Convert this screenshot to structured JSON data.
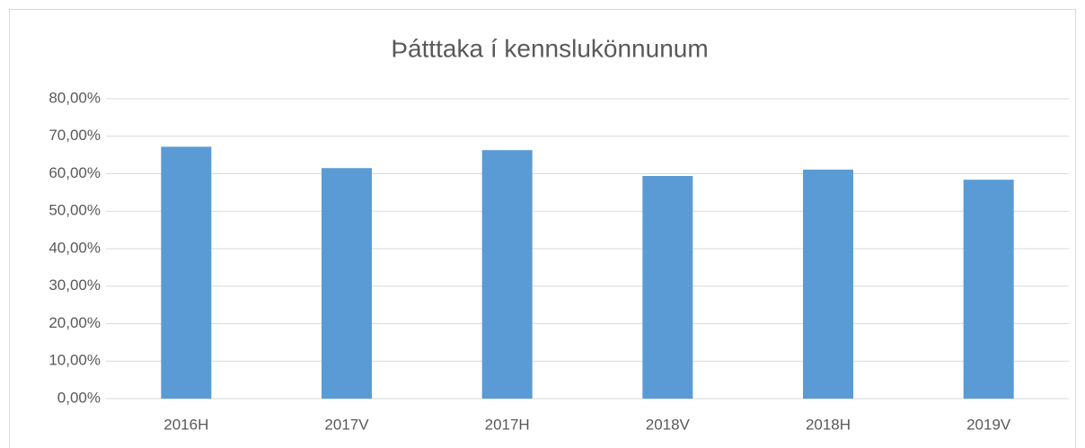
{
  "chart_data": {
    "type": "bar",
    "title": "Þátttaka í kennslukönnunum",
    "categories": [
      "2016H",
      "2017V",
      "2017H",
      "2018V",
      "2018H",
      "2019V"
    ],
    "values": [
      67.2,
      61.5,
      66.3,
      59.4,
      61.1,
      58.4
    ],
    "color": "#5b9bd5",
    "ylim": [
      0,
      80
    ],
    "yticks": [
      {
        "value": 0,
        "label": "0,00%"
      },
      {
        "value": 10,
        "label": "10,00%"
      },
      {
        "value": 20,
        "label": "20,00%"
      },
      {
        "value": 30,
        "label": "30,00%"
      },
      {
        "value": 40,
        "label": "40,00%"
      },
      {
        "value": 50,
        "label": "50,00%"
      },
      {
        "value": 60,
        "label": "60,00%"
      },
      {
        "value": 70,
        "label": "70,00%"
      },
      {
        "value": 80,
        "label": "80,00%"
      }
    ],
    "grid": true
  }
}
